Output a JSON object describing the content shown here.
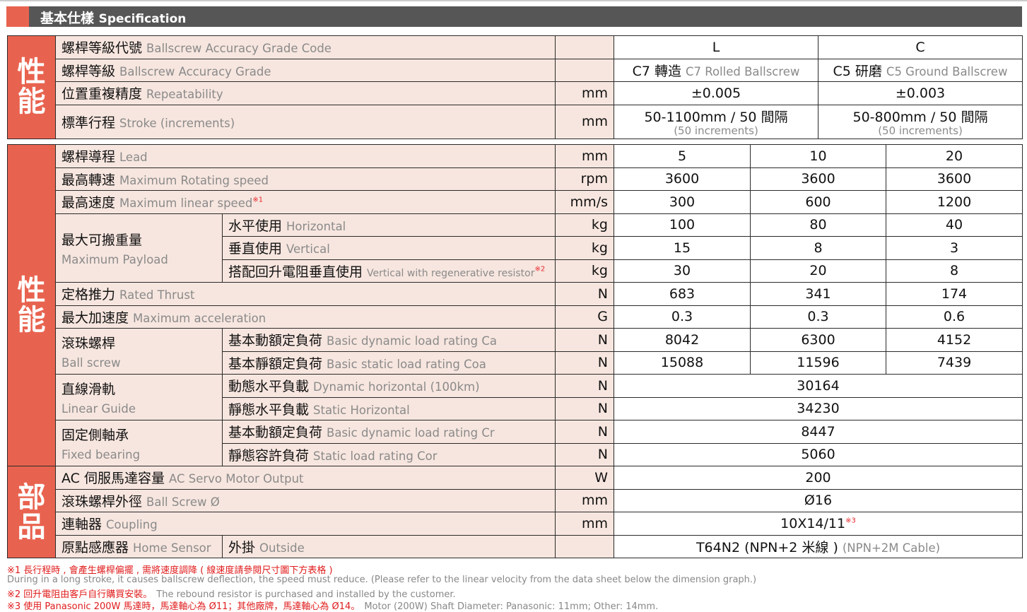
{
  "header": {
    "title_zh": "基本仕樣",
    "title_en": "Specification"
  },
  "section1": {
    "label": "性能",
    "rows": [
      {
        "zh": "螺桿等級代號",
        "en": "Ballscrew Accuracy Grade Code",
        "unit": "",
        "values": [
          "L",
          "C"
        ]
      },
      {
        "zh": "螺桿等級",
        "en": "Ballscrew Accuracy Grade",
        "unit": "",
        "values": [
          {
            "zh": "C7 轉造",
            "en": "C7 Rolled Ballscrew"
          },
          {
            "zh": "C5 研磨",
            "en": "C5 Ground Ballscrew"
          }
        ]
      },
      {
        "zh": "位置重複精度",
        "en": "Repeatability",
        "unit": "mm",
        "values": [
          "±0.005",
          "±0.003"
        ]
      },
      {
        "zh": "標準行程",
        "en": "Stroke (increments)",
        "unit": "mm",
        "values": [
          {
            "zh": "50-1100mm / 50 間隔",
            "en": "(50 increments)"
          },
          {
            "zh": "50-800mm / 50 間隔",
            "en": "(50 increments)"
          }
        ]
      }
    ]
  },
  "section2": {
    "label": "性能",
    "rows": [
      {
        "zh": "螺桿導程",
        "en": "Lead",
        "unit": "mm",
        "values": [
          "5",
          "10",
          "20"
        ]
      },
      {
        "zh": "最高轉速",
        "en": "Maximum Rotating speed",
        "unit": "rpm",
        "values": [
          "3600",
          "3600",
          "3600"
        ]
      },
      {
        "zh": "最高速度",
        "en": "Maximum linear speed",
        "note": "※1",
        "unit": "mm/s",
        "values": [
          "300",
          "600",
          "1200"
        ]
      },
      {
        "group": {
          "zh": "最大可搬重量",
          "en": "Maximum Payload",
          "span": 3
        },
        "zh": "水平使用",
        "en": "Horizontal",
        "unit": "kg",
        "values": [
          "100",
          "80",
          "40"
        ]
      },
      {
        "zh": "垂直使用",
        "en": "Vertical",
        "unit": "kg",
        "values": [
          "15",
          "8",
          "3"
        ]
      },
      {
        "zh": "搭配回升電阻垂直使用",
        "en": "Vertical with regenerative resistor",
        "en_small": true,
        "note": "※2",
        "unit": "kg",
        "values": [
          "30",
          "20",
          "8"
        ]
      },
      {
        "zh": "定格推力",
        "en": "Rated Thrust",
        "unit": "N",
        "values": [
          "683",
          "341",
          "174"
        ]
      },
      {
        "zh": "最大加速度",
        "en": "Maximum acceleration",
        "unit": "G",
        "values": [
          "0.3",
          "0.3",
          "0.6"
        ]
      },
      {
        "group": {
          "zh": "滾珠螺桿",
          "en": "Ball screw",
          "span": 2
        },
        "zh": "基本動額定負荷",
        "en": "Basic dynamic load rating Ca",
        "unit": "N",
        "values": [
          "8042",
          "6300",
          "4152"
        ]
      },
      {
        "zh": "基本靜額定負荷",
        "en": "Basic static load rating Coa",
        "unit": "N",
        "values": [
          "15088",
          "11596",
          "7439"
        ]
      },
      {
        "group": {
          "zh": "直線滑軌",
          "en": "Linear Guide",
          "span": 2
        },
        "zh": "動態水平負載",
        "en": "Dynamic horizontal (100km)",
        "unit": "N",
        "values": [
          "30164"
        ]
      },
      {
        "zh": "靜態水平負載",
        "en": "Static Horizontal",
        "unit": "N",
        "values": [
          "34230"
        ]
      },
      {
        "group": {
          "zh": "固定側軸承",
          "en": "Fixed bearing",
          "span": 2
        },
        "zh": "基本動額定負荷",
        "en": "Basic dynamic load rating Cr",
        "unit": "N",
        "values": [
          "8447"
        ]
      },
      {
        "zh": "靜態容許負荷",
        "en": "Static load rating Cor",
        "unit": "N",
        "values": [
          "5060"
        ]
      }
    ]
  },
  "section3": {
    "label": "部品",
    "rows": [
      {
        "zh": "AC 伺服馬達容量",
        "en": "AC Servo Motor Output",
        "unit": "W",
        "values": [
          "200"
        ]
      },
      {
        "zh": "滾珠螺桿外徑",
        "en": "Ball Screw Ø",
        "unit": "mm",
        "values": [
          "Ø16"
        ]
      },
      {
        "zh": "連軸器",
        "en": "Coupling",
        "unit": "mm",
        "values": [
          {
            "zh": "10X14/11",
            "note": "※3"
          }
        ]
      },
      {
        "zh": "原點感應器",
        "en": "Home Sensor",
        "sub": {
          "zh": "外掛",
          "en": "Outside"
        },
        "unit": "",
        "values": [
          {
            "zh": "T64N2 (NPN+2 米線 )",
            "en": "(NPN+2M Cable)"
          }
        ]
      }
    ]
  },
  "footnotes": [
    {
      "red": "※1 長行程時 , 會產生螺桿偏擺 , 需將速度調降 ( 線速度請參閱尺寸圖下方表格 )",
      "gray": ""
    },
    {
      "red": "",
      "gray": "During in a long stroke, it causes ballscrew deflection, the speed must reduce. (Please refer to the linear velocity from the data sheet below the dimension graph.)"
    },
    {
      "red": "※2 回升電阻由客戶自行購買安裝。",
      "gray": "The rebound resistor is purchased and installed by the customer."
    },
    {
      "red": "※3 使用 Panasonic 200W 馬達時，馬達軸心為 Ø11；其他廠牌，馬達軸心為 Ø14。",
      "gray": "Motor (200W) Shaft Diameter: Panasonic: 11mm; Other: 14mm."
    }
  ],
  "colors": {
    "accent": "#e8634f",
    "label_bg": "#f7e6df",
    "header_bg": "#575657"
  }
}
